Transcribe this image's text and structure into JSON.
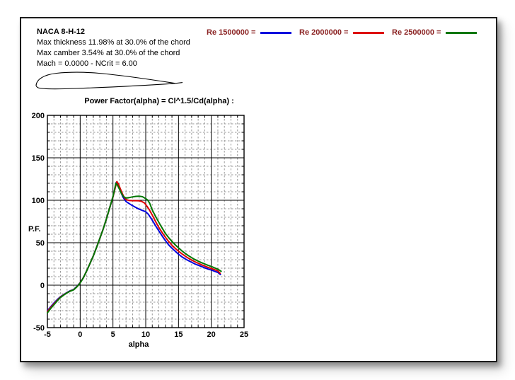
{
  "page": {
    "header": {
      "title": "NACA 8-H-12",
      "lines": [
        "Max thickness 11.98% at 30.0% of the chord",
        "Max camber 3.54% at 30.0% of the chord",
        "Mach = 0.0000 - NCrit = 6.00"
      ]
    },
    "legend": {
      "text_color": "#8b2323",
      "items": [
        {
          "label": "Re 1500000 =",
          "color": "#0000dd"
        },
        {
          "label": "Re 2000000 =",
          "color": "#dd0000"
        },
        {
          "label": "Re 2500000 =",
          "color": "#007700"
        }
      ]
    }
  },
  "chart_data": {
    "type": "line",
    "title": "Power Factor(alpha) = Cl^1.5/Cd(alpha) :",
    "xlabel": "alpha",
    "ylabel": "P.F.",
    "xlim": [
      -5,
      25
    ],
    "ylim": [
      -50,
      200
    ],
    "x_major": 5,
    "x_minor": 1,
    "y_major": 50,
    "y_minor": 10,
    "x_ticks": [
      -5,
      0,
      5,
      10,
      15,
      20,
      25
    ],
    "y_ticks": [
      200,
      150,
      100,
      50,
      0,
      -50
    ],
    "grid": true,
    "grid_minor_color": "#999999",
    "grid_major_color": "#000000",
    "legend_position": "top-outside",
    "series": [
      {
        "name": "Re 1500000",
        "color": "#0000dd",
        "points": [
          [
            -5,
            -30
          ],
          [
            -4.5,
            -25.5
          ],
          [
            -4,
            -21
          ],
          [
            -3.5,
            -17
          ],
          [
            -3,
            -13.5
          ],
          [
            -2.5,
            -11
          ],
          [
            -2,
            -8.5
          ],
          [
            -1.5,
            -6.5
          ],
          [
            -1,
            -5
          ],
          [
            -0.5,
            -1.5
          ],
          [
            0,
            3
          ],
          [
            0.5,
            9
          ],
          [
            1,
            17
          ],
          [
            1.5,
            25.5
          ],
          [
            2,
            34.5
          ],
          [
            2.5,
            44.5
          ],
          [
            3,
            55
          ],
          [
            3.5,
            66
          ],
          [
            4,
            78
          ],
          [
            4.5,
            91
          ],
          [
            5,
            104
          ],
          [
            5.25,
            112
          ],
          [
            5.5,
            121
          ],
          [
            5.75,
            119
          ],
          [
            6,
            114
          ],
          [
            6.25,
            109
          ],
          [
            6.5,
            104
          ],
          [
            7,
            98.5
          ],
          [
            7.5,
            96
          ],
          [
            8,
            93.5
          ],
          [
            8.5,
            91.5
          ],
          [
            9,
            89.5
          ],
          [
            9.5,
            88
          ],
          [
            10,
            86.5
          ],
          [
            10.4,
            83.5
          ],
          [
            11,
            76.5
          ],
          [
            11.5,
            70
          ],
          [
            12,
            64
          ],
          [
            12.5,
            58
          ],
          [
            13,
            52.5
          ],
          [
            13.5,
            47.5
          ],
          [
            14,
            43.5
          ],
          [
            14.5,
            40
          ],
          [
            15,
            36.5
          ],
          [
            15.5,
            33.5
          ],
          [
            16,
            31
          ],
          [
            16.5,
            29
          ],
          [
            17,
            27
          ],
          [
            17.5,
            25
          ],
          [
            18,
            23.5
          ],
          [
            18.5,
            22
          ],
          [
            19,
            20.5
          ],
          [
            19.5,
            19
          ],
          [
            20,
            17.8
          ],
          [
            20.5,
            16.4
          ],
          [
            21,
            15
          ],
          [
            21.4,
            12.5
          ]
        ]
      },
      {
        "name": "Re 2000000",
        "color": "#dd0000",
        "points": [
          [
            -5,
            -31
          ],
          [
            -4.5,
            -26.5
          ],
          [
            -4,
            -22
          ],
          [
            -3.5,
            -17.8
          ],
          [
            -3,
            -14
          ],
          [
            -2.5,
            -11.3
          ],
          [
            -2,
            -8.8
          ],
          [
            -1.5,
            -6.8
          ],
          [
            -1,
            -5.3
          ],
          [
            -0.5,
            -1.8
          ],
          [
            0,
            2.8
          ],
          [
            0.5,
            9
          ],
          [
            1,
            17
          ],
          [
            1.5,
            25.5
          ],
          [
            2,
            34.5
          ],
          [
            2.5,
            44.5
          ],
          [
            3,
            55
          ],
          [
            3.5,
            66
          ],
          [
            4,
            78
          ],
          [
            4.5,
            91
          ],
          [
            5,
            104
          ],
          [
            5.3,
            113
          ],
          [
            5.6,
            122
          ],
          [
            5.85,
            119
          ],
          [
            6.1,
            114
          ],
          [
            6.4,
            108.5
          ],
          [
            6.7,
            103.5
          ],
          [
            7,
            100.8
          ],
          [
            7.4,
            99.8
          ],
          [
            8,
            99.5
          ],
          [
            8.5,
            99.5
          ],
          [
            9,
            99.3
          ],
          [
            9.4,
            98.6
          ],
          [
            9.8,
            96.8
          ],
          [
            10,
            95
          ],
          [
            10.5,
            89.5
          ],
          [
            11,
            82.5
          ],
          [
            11.5,
            75
          ],
          [
            12,
            68
          ],
          [
            12.5,
            62
          ],
          [
            13,
            56.5
          ],
          [
            13.5,
            51.5
          ],
          [
            14,
            47
          ],
          [
            14.5,
            43.3
          ],
          [
            15,
            40
          ],
          [
            15.5,
            37
          ],
          [
            16,
            34.3
          ],
          [
            16.5,
            31.8
          ],
          [
            17,
            29.6
          ],
          [
            17.5,
            27.6
          ],
          [
            18,
            25.8
          ],
          [
            18.5,
            24.1
          ],
          [
            19,
            22.5
          ],
          [
            19.5,
            21
          ],
          [
            20,
            19.7
          ],
          [
            20.5,
            18.3
          ],
          [
            21,
            16.8
          ],
          [
            21.35,
            14
          ]
        ]
      },
      {
        "name": "Re 2500000",
        "color": "#007700",
        "points": [
          [
            -5,
            -32.5
          ],
          [
            -4.5,
            -27.5
          ],
          [
            -4,
            -23
          ],
          [
            -3.5,
            -18.5
          ],
          [
            -3,
            -14.5
          ],
          [
            -2.5,
            -11.6
          ],
          [
            -2,
            -9.1
          ],
          [
            -1.5,
            -7
          ],
          [
            -1,
            -5.5
          ],
          [
            -0.5,
            -2
          ],
          [
            0,
            2.6
          ],
          [
            0.5,
            9
          ],
          [
            1,
            17
          ],
          [
            1.5,
            25.5
          ],
          [
            2,
            34.5
          ],
          [
            2.5,
            44.5
          ],
          [
            3,
            55
          ],
          [
            3.5,
            66
          ],
          [
            4,
            78
          ],
          [
            4.5,
            91
          ],
          [
            5,
            104.5
          ],
          [
            5.2,
            111
          ],
          [
            5.45,
            120
          ],
          [
            5.7,
            117.5
          ],
          [
            6,
            113
          ],
          [
            6.3,
            108
          ],
          [
            6.6,
            104.3
          ],
          [
            7,
            102.6
          ],
          [
            7.5,
            103.2
          ],
          [
            8,
            104
          ],
          [
            8.5,
            104.6
          ],
          [
            9,
            104.8
          ],
          [
            9.5,
            104.2
          ],
          [
            10,
            102
          ],
          [
            10.3,
            100.2
          ],
          [
            10.6,
            96.5
          ],
          [
            11,
            88.5
          ],
          [
            11.5,
            81
          ],
          [
            12,
            74
          ],
          [
            12.5,
            67.3
          ],
          [
            13,
            61
          ],
          [
            13.5,
            56
          ],
          [
            14,
            51.5
          ],
          [
            14.5,
            47.5
          ],
          [
            15,
            44
          ],
          [
            15.5,
            40.5
          ],
          [
            16,
            37.5
          ],
          [
            16.5,
            34.8
          ],
          [
            17,
            32.4
          ],
          [
            17.5,
            30.2
          ],
          [
            18,
            28.3
          ],
          [
            18.5,
            26.5
          ],
          [
            19,
            25
          ],
          [
            19.5,
            23.4
          ],
          [
            20,
            22
          ],
          [
            20.5,
            20.4
          ],
          [
            21,
            18.8
          ],
          [
            21.5,
            16.3
          ]
        ]
      }
    ]
  }
}
